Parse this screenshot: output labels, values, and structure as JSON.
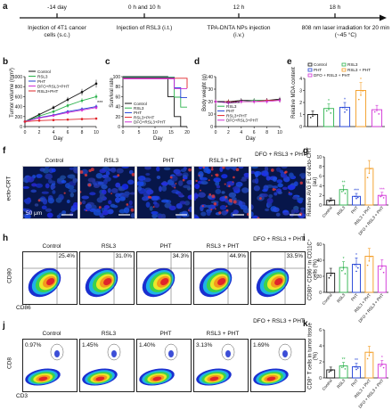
{
  "panel_labels": {
    "a": "a",
    "b": "b",
    "c": "c",
    "d": "d",
    "e": "e",
    "f": "f",
    "g": "g",
    "h": "h",
    "i": "i",
    "j": "j",
    "k": "k"
  },
  "timeline": {
    "points": [
      {
        "time": "-14 day",
        "desc": "Injection of 4T1 cancer cells (s.c.)"
      },
      {
        "time": "0 h and 10 h",
        "desc": "Injection of RSL3 (i.t.)"
      },
      {
        "time": "12 h",
        "desc": "TPA-DNTA NPs injection (i.v.)"
      },
      {
        "time": "18 h",
        "desc": "808 nm laser irradiation for 20 min (~45 °C)"
      }
    ]
  },
  "colors": {
    "control": "#111111",
    "rsl3": "#2bb24c",
    "pht": "#1f3fd6",
    "rsl3_pht": "#e0252a",
    "dfo": "#d12fd6",
    "orange": "#f39a1e"
  },
  "groups_long": [
    "Control",
    "RSL3",
    "PHT",
    "RSL3 + PHT",
    "DFO + RSL3 + PHT"
  ],
  "groups_short": [
    "Control",
    "RSL3",
    "PHT",
    "RSL3+PHT",
    "DFO+RSL3+PHT"
  ],
  "groups_tick": [
    "Control",
    "RSL3",
    "PHT",
    "RSL3 + PHT",
    "DFO + RSL3 + PHT"
  ],
  "fig_b": {
    "ylabel": "Tumor volume (mm³)",
    "xlabel": "Day",
    "yticks": [
      "0",
      "200",
      "400",
      "600",
      "800",
      "1000"
    ],
    "xticks": [
      "0",
      "2",
      "4",
      "6",
      "8",
      "10"
    ],
    "sig": "***",
    "legend": [
      "Control",
      "RSL3",
      "PHT",
      "DFO+RSL3+PHT",
      "RSL3+PHT"
    ]
  },
  "fig_c": {
    "ylabel": "Survival rate",
    "xlabel": "Day",
    "yticks": [
      "0",
      "20",
      "40",
      "60",
      "80",
      "100"
    ],
    "xticks": [
      "0",
      "5",
      "10",
      "15",
      "20"
    ]
  },
  "fig_d": {
    "ylabel": "Body weight (g)",
    "xlabel": "Day",
    "yticks": [
      "0",
      "10",
      "20",
      "30",
      "40"
    ],
    "xticks": [
      "0",
      "2",
      "4",
      "6",
      "8",
      "10"
    ]
  },
  "fig_e": {
    "ylabel": "Relative MDA content",
    "yticks": [
      "0",
      "1",
      "2",
      "3",
      "4"
    ],
    "stars": [
      "",
      "*",
      "*",
      "*",
      ""
    ],
    "legend": [
      "Control",
      "RSL3",
      "PHT",
      "RSL3 + PHT",
      "DFO + RSL3 + PHT"
    ]
  },
  "fig_f": {
    "side_label": "ecto-CRT",
    "scale": "50 μm"
  },
  "fig_g": {
    "ylabel": "Relative AVG FL of ecto-CRT (au)",
    "yticks": [
      "0",
      "2",
      "4",
      "6",
      "8",
      "10"
    ],
    "stars": [
      "",
      "**",
      "***",
      "",
      "***"
    ]
  },
  "fig_h": {
    "percents": [
      "25.4%",
      "31.0%",
      "34.3%",
      "44.9%",
      "33.5%"
    ],
    "xlabel": "CD86",
    "ylabel": "CD80"
  },
  "fig_i": {
    "ylabel": "CD80⁺ CD86⁺ in CD11C⁺ cells (%)",
    "yticks": [
      "0",
      "20",
      "40",
      "60"
    ],
    "stars": [
      "",
      "*",
      "*",
      "",
      ""
    ]
  },
  "fig_j": {
    "percents": [
      "0.97%",
      "1.45%",
      "1.40%",
      "3.13%",
      "1.69%"
    ],
    "xlabel": "CD3",
    "ylabel": "CD8"
  },
  "fig_k": {
    "ylabel": "CD8⁺ T cells in tumor tissue (%)",
    "yticks": [
      "0",
      "2",
      "4",
      "6"
    ],
    "stars": [
      "",
      "**",
      "**",
      "",
      "*"
    ]
  },
  "chart_data": [
    {
      "id": "b",
      "type": "line",
      "xlabel": "Day",
      "ylabel": "Tumor volume (mm³)",
      "ylim": [
        0,
        1000
      ],
      "x": [
        0,
        2,
        4,
        6,
        8,
        10
      ],
      "series": [
        {
          "name": "Control",
          "values": [
            100,
            240,
            380,
            540,
            690,
            860
          ]
        },
        {
          "name": "RSL3",
          "values": [
            100,
            210,
            300,
            420,
            520,
            600
          ]
        },
        {
          "name": "PHT",
          "values": [
            100,
            180,
            230,
            300,
            350,
            400
          ]
        },
        {
          "name": "DFO+RSL3+PHT",
          "values": [
            100,
            170,
            220,
            280,
            330,
            380
          ]
        },
        {
          "name": "RSL3+PHT",
          "values": [
            100,
            120,
            130,
            140,
            150,
            160
          ]
        }
      ]
    },
    {
      "id": "c",
      "type": "line",
      "xlabel": "Day",
      "ylabel": "Survival rate",
      "ylim": [
        0,
        100
      ],
      "x": [
        0,
        5,
        10,
        14,
        16,
        18,
        20
      ],
      "series": [
        {
          "name": "Control",
          "values": [
            100,
            100,
            100,
            60,
            20,
            0,
            0
          ]
        },
        {
          "name": "RSL3",
          "values": [
            100,
            100,
            100,
            100,
            60,
            40,
            40
          ]
        },
        {
          "name": "PHT",
          "values": [
            100,
            100,
            100,
            100,
            80,
            60,
            60
          ]
        },
        {
          "name": "RSL3+PHT",
          "values": [
            100,
            100,
            100,
            100,
            100,
            100,
            80
          ]
        },
        {
          "name": "DFO+RSL3+PHT",
          "values": [
            100,
            100,
            100,
            100,
            80,
            80,
            80
          ]
        }
      ]
    },
    {
      "id": "d",
      "type": "line",
      "xlabel": "Day",
      "ylabel": "Body weight (g)",
      "ylim": [
        0,
        40
      ],
      "x": [
        0,
        2,
        4,
        6,
        8,
        10
      ],
      "series": [
        {
          "name": "Control",
          "values": [
            20,
            20,
            21,
            21,
            21,
            22
          ]
        },
        {
          "name": "RSL3",
          "values": [
            20,
            20,
            20,
            21,
            21,
            21
          ]
        },
        {
          "name": "PHT",
          "values": [
            20,
            19,
            20,
            20,
            21,
            21
          ]
        },
        {
          "name": "RSL3+PHT",
          "values": [
            20,
            20,
            20,
            20,
            21,
            21
          ]
        },
        {
          "name": "DFO+RSL3+PHT",
          "values": [
            20,
            19,
            20,
            20,
            20,
            21
          ]
        }
      ]
    },
    {
      "id": "e",
      "type": "bar",
      "ylabel": "Relative MDA content",
      "ylim": [
        0,
        4
      ],
      "categories": [
        "Control",
        "RSL3",
        "PHT",
        "RSL3 + PHT",
        "DFO + RSL3 + PHT"
      ],
      "values": [
        1.0,
        1.5,
        1.6,
        3.0,
        1.4
      ]
    },
    {
      "id": "g",
      "type": "bar",
      "ylabel": "Relative AVG FL of ecto-CRT (au)",
      "ylim": [
        0,
        10
      ],
      "categories": [
        "Control",
        "RSL3",
        "PHT",
        "RSL3 + PHT",
        "DFO + RSL3 + PHT"
      ],
      "values": [
        1.0,
        3.2,
        1.8,
        7.6,
        2.0
      ]
    },
    {
      "id": "i",
      "type": "bar",
      "ylabel": "CD80⁺ CD86⁺ in CD11C⁺ cells (%)",
      "ylim": [
        0,
        60
      ],
      "categories": [
        "Control",
        "RSL3",
        "PHT",
        "RSL3 + PHT",
        "DFO + RSL3 + PHT"
      ],
      "values": [
        24,
        31,
        35,
        45,
        33
      ]
    },
    {
      "id": "k",
      "type": "bar",
      "ylabel": "CD8⁺ T cells in tumor tissue (%)",
      "ylim": [
        0,
        6
      ],
      "categories": [
        "Control",
        "RSL3",
        "PHT",
        "RSL3 + PHT",
        "DFO + RSL3 + PHT"
      ],
      "values": [
        1.0,
        1.5,
        1.4,
        3.2,
        1.7
      ]
    }
  ]
}
